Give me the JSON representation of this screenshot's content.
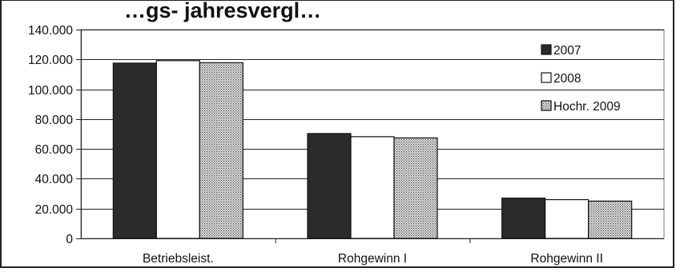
{
  "chart_data": {
    "type": "bar",
    "title": "…gs- jahresvergl…",
    "categories": [
      "Betriebsleist.",
      "Rohgewinn I",
      "Rohgewinn II"
    ],
    "series": [
      {
        "name": "2007",
        "values": [
          117500,
          70300,
          27000
        ],
        "fill": "#2b2b2b"
      },
      {
        "name": "2008",
        "values": [
          119200,
          68200,
          26000
        ],
        "fill": "#ffffff"
      },
      {
        "name": "Hochr. 2009",
        "values": [
          117800,
          67400,
          25000
        ],
        "fill": "pattern"
      }
    ],
    "ylim": [
      0,
      140000
    ],
    "yticks": [
      0,
      20000,
      40000,
      60000,
      80000,
      100000,
      120000,
      140000
    ],
    "ytick_labels": [
      "0",
      "20.000",
      "40.000",
      "60.000",
      "80.000",
      "100.000",
      "120.000",
      "140.000"
    ],
    "grid": true,
    "legend": "top-right",
    "xlabel": "",
    "ylabel": ""
  }
}
